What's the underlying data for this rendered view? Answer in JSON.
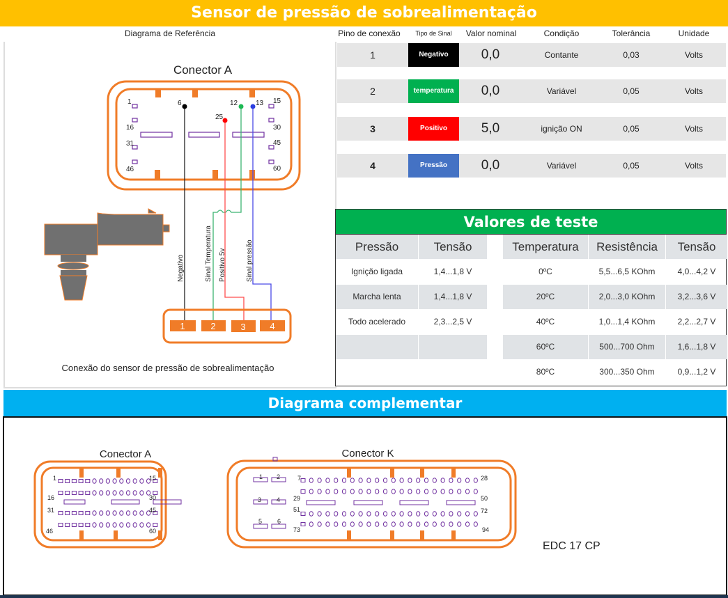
{
  "title": "Sensor de pressão de  sobrealimentação",
  "headers": {
    "diagram": "Diagrama de Referência",
    "pin": "Pino de conexão",
    "type": "Tipo de Sinal",
    "nominal": "Valor nominal",
    "condition": "Condição",
    "tolerance": "Tolerância",
    "unit": "Unidade"
  },
  "pins": [
    {
      "pin": "1",
      "type": "Negativo",
      "color": "#000000",
      "nominal": "0,0",
      "condition": "Contante",
      "tolerance": "0,03",
      "unit": "Volts"
    },
    {
      "pin": "2",
      "type": "temperatura",
      "color": "#00B050",
      "nominal": "0,0",
      "condition": "Variável",
      "tolerance": "0,05",
      "unit": "Volts"
    },
    {
      "pin": "3",
      "type": "Positivo",
      "color": "#FF0000",
      "nominal": "5,0",
      "condition": "ignição ON",
      "tolerance": "0,05",
      "unit": "Volts"
    },
    {
      "pin": "4",
      "type": "Pressão",
      "color": "#4472C4",
      "nominal": "0,0",
      "condition": "Variável",
      "tolerance": "0,05",
      "unit": "Volts"
    }
  ],
  "diagram": {
    "connector_title": "Conector A",
    "pin_labels": {
      "p1": "1",
      "p16": "16",
      "p31": "31",
      "p46": "46",
      "p15": "15",
      "p30": "30",
      "p45": "45",
      "p60": "60",
      "p6": "6",
      "p25": "25",
      "p12": "12",
      "p13": "13"
    },
    "wires": {
      "negativo": "Negativo",
      "temp": "Sinal Temperatura",
      "pos": "Positivo 5v",
      "press": "Sinal pressão"
    },
    "sensor_pins": [
      "1",
      "2",
      "3",
      "4"
    ],
    "caption": "Conexão do sensor de pressão de sobrealimentação"
  },
  "test_values": {
    "title": "Valores de teste",
    "pressure_headers": [
      "Pressão",
      "Tensão"
    ],
    "pressure_rows": [
      [
        "Ignição ligada",
        "1,4...1,8 V"
      ],
      [
        "Marcha lenta",
        "1,4...1,8 V"
      ],
      [
        "Todo acelerado",
        "2,3...2,5 V"
      ]
    ],
    "temp_headers": [
      "Temperatura",
      "Resistência",
      "Tensão"
    ],
    "temp_rows": [
      [
        "0ºC",
        "5,5...6,5 KOhm",
        "4,0...4,2 V"
      ],
      [
        "20ºC",
        "2,0...3,0 KOhm",
        "3,2...3,6 V"
      ],
      [
        "40ºC",
        "1,0...1,4 KOhm",
        "2,2...2,7 V"
      ],
      [
        "60ºC",
        "500...700 Ohm",
        "1,6...1,8 V"
      ],
      [
        "80ºC",
        "300...350 Ohm",
        "0,9...1,2 V"
      ]
    ]
  },
  "complementary": {
    "title": "Diagrama complementar",
    "conn_a": {
      "title": "Conector A",
      "labels": [
        "1",
        "15",
        "16",
        "30",
        "31",
        "45",
        "46",
        "60"
      ]
    },
    "conn_k": {
      "title": "Conector K",
      "labels": [
        "1",
        "2",
        "3",
        "4",
        "5",
        "6",
        "7",
        "28",
        "29",
        "50",
        "51",
        "72",
        "73",
        "94"
      ]
    },
    "ecu": "EDC 17 CP"
  },
  "colors": {
    "title_bar": "#FFC000",
    "test_header": "#00B050",
    "complementary_bar": "#00B0F0",
    "connector": "#F07C28",
    "pad": "#7030A0"
  }
}
